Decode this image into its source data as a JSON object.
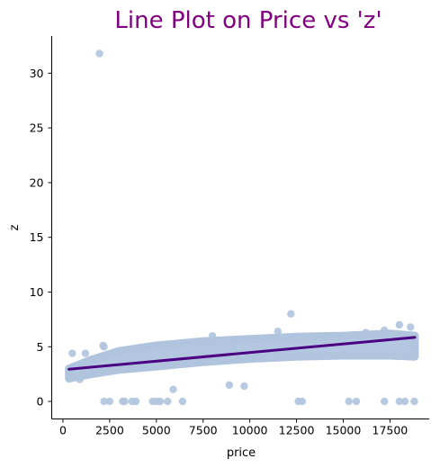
{
  "chart_data": {
    "type": "scatter",
    "title": "Line Plot on Price vs 'z'",
    "xlabel": "price",
    "ylabel": "z",
    "xlim": [
      -600,
      19600
    ],
    "ylim": [
      -1.6,
      33.4
    ],
    "x_ticks": [
      0,
      2500,
      5000,
      7500,
      10000,
      12500,
      15000,
      17500
    ],
    "y_ticks": [
      0,
      5,
      10,
      15,
      20,
      25,
      30
    ],
    "x_tick_labels": [
      "0",
      "2500",
      "5000",
      "7500",
      "10000",
      "12500",
      "15000",
      "17500"
    ],
    "y_tick_labels": [
      "0",
      "5",
      "10",
      "15",
      "20",
      "25",
      "30"
    ],
    "grid": false,
    "legend": "none",
    "colors": {
      "points": "#b0c4de",
      "line": "#4b0082",
      "title": "#800080",
      "axis": "#000000"
    },
    "regression_line": {
      "x": [
        326,
        18823
      ],
      "y": [
        2.95,
        5.85
      ]
    },
    "band": {
      "x": [
        326,
        1500,
        3000,
        5000,
        7500,
        10000,
        12500,
        15000,
        17500,
        18823
      ],
      "lower": [
        2.1,
        2.5,
        2.9,
        3.2,
        3.6,
        3.9,
        4.1,
        4.2,
        4.2,
        4.1
      ],
      "upper": [
        3.0,
        3.8,
        4.6,
        5.1,
        5.5,
        5.7,
        5.9,
        6.0,
        6.2,
        6.0
      ]
    },
    "points": [
      {
        "x": 1950,
        "y": 31.8
      },
      {
        "x": 500,
        "y": 4.4
      },
      {
        "x": 1200,
        "y": 4.4
      },
      {
        "x": 2150,
        "y": 5.1
      },
      {
        "x": 2200,
        "y": 5.0
      },
      {
        "x": 8000,
        "y": 6.0
      },
      {
        "x": 12200,
        "y": 8.0
      },
      {
        "x": 11500,
        "y": 6.4
      },
      {
        "x": 16200,
        "y": 6.3
      },
      {
        "x": 18000,
        "y": 7.0
      },
      {
        "x": 18600,
        "y": 6.8
      },
      {
        "x": 17200,
        "y": 6.5
      },
      {
        "x": 900,
        "y": 2.0
      },
      {
        "x": 2200,
        "y": 0
      },
      {
        "x": 2500,
        "y": 0
      },
      {
        "x": 3200,
        "y": 0
      },
      {
        "x": 3300,
        "y": 0
      },
      {
        "x": 3700,
        "y": 0
      },
      {
        "x": 3900,
        "y": 0
      },
      {
        "x": 4800,
        "y": 0
      },
      {
        "x": 5000,
        "y": 0
      },
      {
        "x": 5200,
        "y": 0
      },
      {
        "x": 5600,
        "y": 0
      },
      {
        "x": 6400,
        "y": 0
      },
      {
        "x": 5900,
        "y": 1.1
      },
      {
        "x": 8900,
        "y": 1.5
      },
      {
        "x": 9700,
        "y": 1.4
      },
      {
        "x": 12600,
        "y": 0
      },
      {
        "x": 12800,
        "y": 0
      },
      {
        "x": 15300,
        "y": 0
      },
      {
        "x": 15700,
        "y": 0
      },
      {
        "x": 17200,
        "y": 0
      },
      {
        "x": 18000,
        "y": 0
      },
      {
        "x": 18300,
        "y": 0
      },
      {
        "x": 18800,
        "y": 0
      }
    ]
  }
}
